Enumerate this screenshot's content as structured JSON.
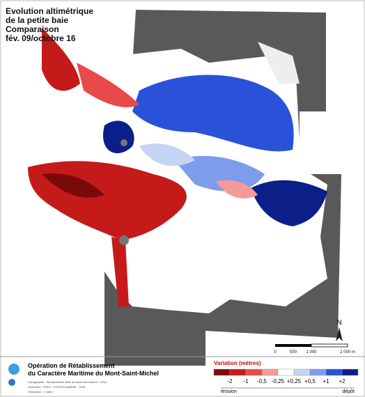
{
  "title": [
    "Evolution altimétrique",
    "de la petite baie",
    "Comparaison",
    "fév. 09/octobre 16"
  ],
  "north": "N",
  "scale_bar": {
    "labels": [
      "0",
      "500",
      "1 000",
      "2 000 m"
    ]
  },
  "footer": {
    "title": [
      "Opération de Rétablissement",
      "du Caractère Maritime du Mont-Saint-Michel"
    ],
    "credits": [
      "Cartographie : Syndicat Mixte Baie du Mont-Saint-Michel - 2016",
      "UNICAEN - CREC - STATION MARINE - 2016",
      "Résolution : 1 mètre"
    ]
  },
  "legend": {
    "title": "Variation (mètres)",
    "labels": [
      "-2",
      "-1",
      "-0,5",
      "-0,25",
      "+0,25",
      "+0,5",
      "+1",
      "+2"
    ],
    "colors": [
      "#7a0a0a",
      "#c41a1a",
      "#e84a4a",
      "#f59a9a",
      "#ffffff",
      "#c6d4f4",
      "#7e9cec",
      "#2a52d8",
      "#0c1e88"
    ],
    "left": "érosion",
    "right": "dépôt"
  }
}
